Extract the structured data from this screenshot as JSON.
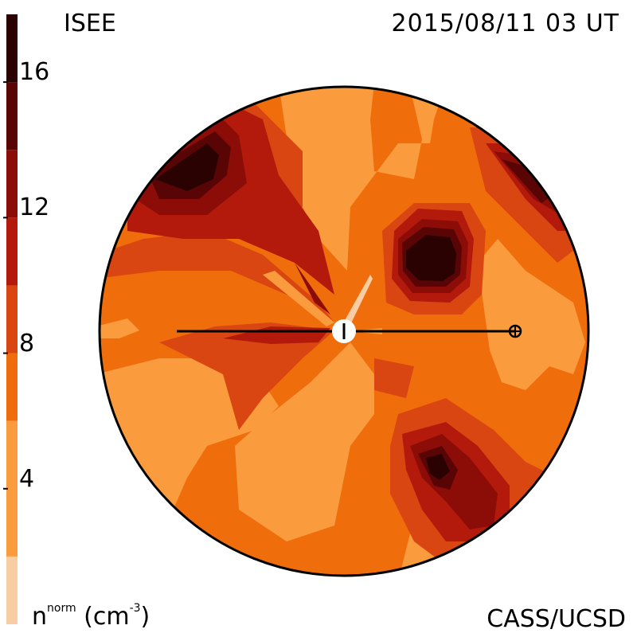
{
  "header": {
    "left_label": "ISEE",
    "right_label": "2015/08/11 03 UT"
  },
  "footer": {
    "units_base": "n",
    "units_super": "norm",
    "units_rest": " (cm",
    "units_exp": "-3",
    "units_close": ")",
    "credit": "CASS/UCSD"
  },
  "colorbar": {
    "min": 0,
    "max": 18,
    "tick_labels": [
      "4",
      "8",
      "12",
      "16"
    ],
    "tick_values": [
      4,
      8,
      12,
      16
    ],
    "levels": [
      {
        "from": 0,
        "to": 2,
        "color": "#f9cda4"
      },
      {
        "from": 2,
        "to": 6,
        "color": "#fa9c3d"
      },
      {
        "from": 6,
        "to": 8,
        "color": "#f06d0c"
      },
      {
        "from": 8,
        "to": 10,
        "color": "#d94612"
      },
      {
        "from": 10,
        "to": 12,
        "color": "#b31a0b"
      },
      {
        "from": 12,
        "to": 14,
        "color": "#8c0d08"
      },
      {
        "from": 14,
        "to": 16,
        "color": "#5a0505"
      },
      {
        "from": 16,
        "to": 18,
        "color": "#2a0202"
      }
    ]
  },
  "map": {
    "type": "density-contour-disk",
    "center_marker": "sun-marker",
    "earth_marker": "earth-marker"
  }
}
